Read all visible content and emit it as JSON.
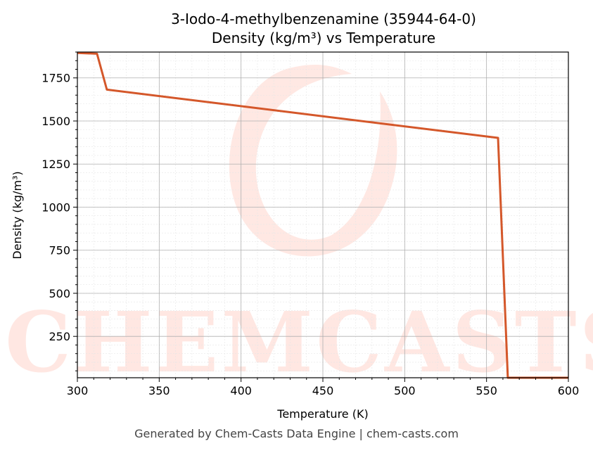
{
  "chart_data": {
    "type": "line",
    "title": "3-Iodo-4-methylbenzenamine (35944-64-0)",
    "subtitle": "Density (kg/m³) vs Temperature",
    "xlabel": "Temperature (K)",
    "ylabel": "Density (kg/m³)",
    "xlim": [
      300,
      600
    ],
    "ylim": [
      10,
      1900
    ],
    "xticks": [
      300,
      350,
      400,
      450,
      500,
      550,
      600
    ],
    "yticks": [
      250,
      500,
      750,
      1000,
      1250,
      1500,
      1750
    ],
    "grid": true,
    "series": [
      {
        "color": "#d4572a",
        "x": [
          300,
          312,
          318,
          557,
          563,
          600
        ],
        "y": [
          1895,
          1890,
          1682,
          1402,
          10,
          10
        ]
      }
    ],
    "watermark": "CHEMCASTS",
    "footer": "Generated by Chem-Casts Data Engine | chem-casts.com"
  }
}
